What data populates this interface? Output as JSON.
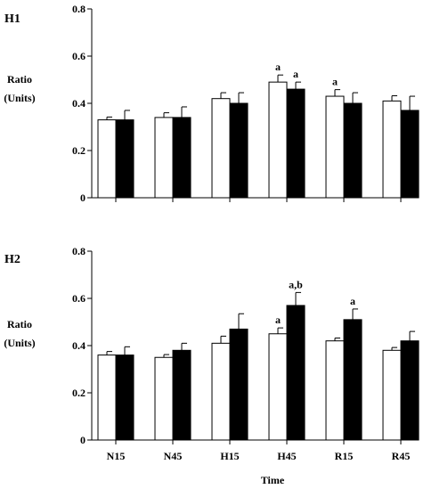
{
  "chart_data": [
    {
      "type": "bar",
      "panel_label": "H1",
      "ylabel": [
        "Ratio",
        "(Units)"
      ],
      "ylim": [
        0,
        0.8
      ],
      "yticks": [
        "0",
        "0.2",
        "0.4",
        "0.6",
        "0.8"
      ],
      "categories": [
        "N15",
        "N45",
        "H15",
        "H45",
        "R15",
        "R45"
      ],
      "series": [
        {
          "fill": "#ffffff",
          "values": [
            0.33,
            0.34,
            0.42,
            0.49,
            0.43,
            0.41
          ],
          "errors": [
            0.012,
            0.02,
            0.025,
            0.03,
            0.028,
            0.022
          ]
        },
        {
          "fill": "#000000",
          "values": [
            0.33,
            0.34,
            0.4,
            0.46,
            0.4,
            0.37
          ],
          "errors": [
            0.04,
            0.045,
            0.045,
            0.03,
            0.045,
            0.06
          ]
        }
      ],
      "annotations": [
        {
          "category": 3,
          "series": 0,
          "text": "a"
        },
        {
          "category": 3,
          "series": 1,
          "text": "a"
        },
        {
          "category": 4,
          "series": 0,
          "text": "a"
        }
      ],
      "xlabel": "",
      "show_category_labels": false
    },
    {
      "type": "bar",
      "panel_label": "H2",
      "ylabel": [
        "Ratio",
        "(Units)"
      ],
      "ylim": [
        0,
        0.8
      ],
      "yticks": [
        "0",
        "0.2",
        "0.4",
        "0.6",
        "0.8"
      ],
      "categories": [
        "N15",
        "N45",
        "H15",
        "H45",
        "R15",
        "R45"
      ],
      "series": [
        {
          "fill": "#ffffff",
          "values": [
            0.36,
            0.35,
            0.41,
            0.45,
            0.42,
            0.38
          ],
          "errors": [
            0.015,
            0.012,
            0.03,
            0.025,
            0.012,
            0.012
          ]
        },
        {
          "fill": "#000000",
          "values": [
            0.36,
            0.38,
            0.47,
            0.57,
            0.51,
            0.42
          ],
          "errors": [
            0.035,
            0.03,
            0.065,
            0.055,
            0.045,
            0.04
          ]
        }
      ],
      "annotations": [
        {
          "category": 3,
          "series": 0,
          "text": "a"
        },
        {
          "category": 3,
          "series": 1,
          "text": "a,b"
        },
        {
          "category": 4,
          "series": 1,
          "text": "a"
        }
      ],
      "xlabel": "Time",
      "show_category_labels": true
    }
  ]
}
